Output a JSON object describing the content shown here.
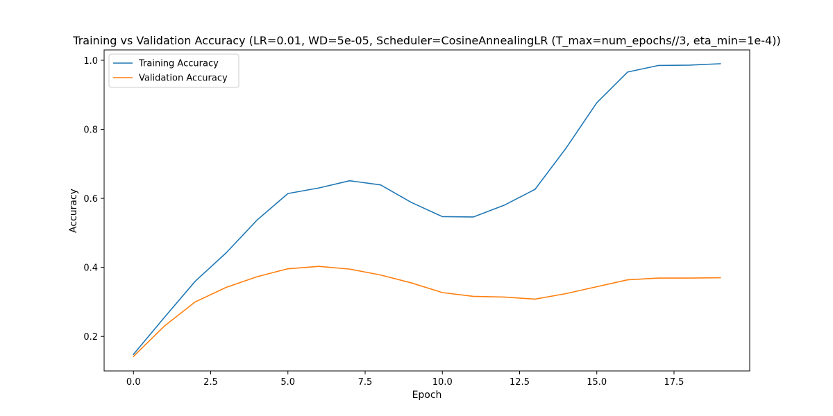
{
  "chart_data": {
    "type": "line",
    "title": "Training vs Validation Accuracy (LR=0.01, WD=5e-05, Scheduler=CosineAnnealingLR (T_max=num_epochs//3, eta_min=1e-4))",
    "xlabel": "Epoch",
    "ylabel": "Accuracy",
    "xlim": [
      -0.95,
      19.95
    ],
    "ylim": [
      0.1,
      1.03
    ],
    "xticks": [
      0.0,
      2.5,
      5.0,
      7.5,
      10.0,
      12.5,
      15.0,
      17.5
    ],
    "xtick_labels": [
      "0.0",
      "2.5",
      "5.0",
      "7.5",
      "10.0",
      "12.5",
      "15.0",
      "17.5"
    ],
    "yticks": [
      0.2,
      0.4,
      0.6,
      0.8,
      1.0
    ],
    "ytick_labels": [
      "0.2",
      "0.4",
      "0.6",
      "0.8",
      "1.0"
    ],
    "grid": false,
    "legend_position": "top-left",
    "x": [
      0,
      1,
      2,
      3,
      4,
      5,
      6,
      7,
      8,
      9,
      10,
      11,
      12,
      13,
      14,
      15,
      16,
      17,
      18,
      19
    ],
    "series": [
      {
        "name": "Training Accuracy",
        "color": "#1f77b4",
        "values": [
          0.148,
          0.255,
          0.36,
          0.442,
          0.537,
          0.614,
          0.63,
          0.651,
          0.639,
          0.588,
          0.547,
          0.546,
          0.58,
          0.626,
          0.745,
          0.877,
          0.966,
          0.985,
          0.986,
          0.99
        ]
      },
      {
        "name": "Validation Accuracy",
        "color": "#ff7f0e",
        "values": [
          0.142,
          0.23,
          0.3,
          0.342,
          0.373,
          0.396,
          0.403,
          0.395,
          0.378,
          0.355,
          0.327,
          0.316,
          0.314,
          0.308,
          0.324,
          0.344,
          0.364,
          0.369,
          0.369,
          0.37
        ]
      }
    ]
  }
}
